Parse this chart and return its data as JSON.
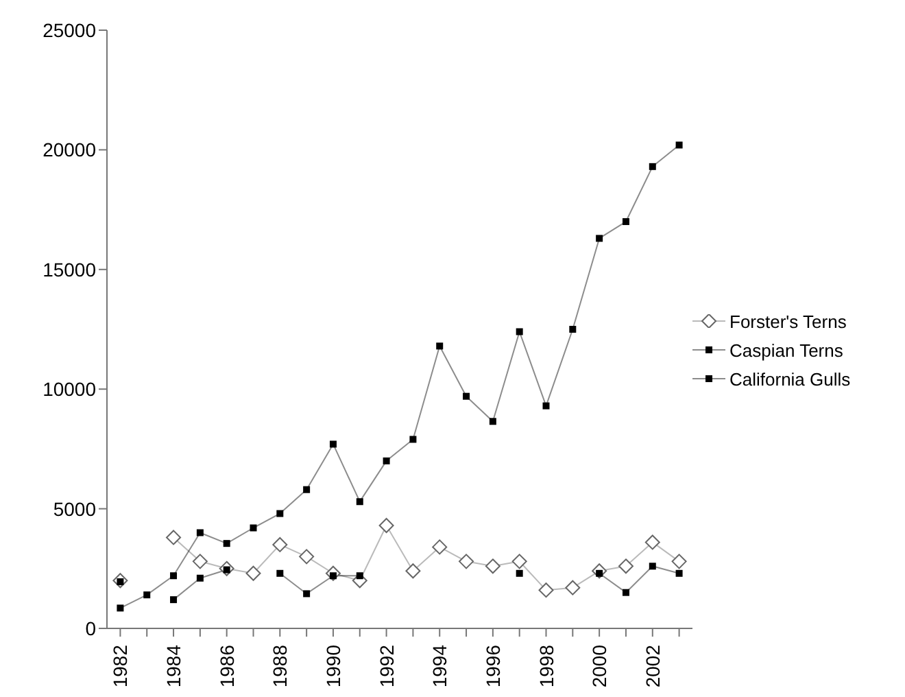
{
  "chart_data": {
    "type": "line",
    "categories": [
      "1982",
      null,
      "1984",
      null,
      "1986",
      null,
      "1988",
      null,
      "1990",
      null,
      "1992",
      null,
      "1994",
      null,
      "1996",
      null,
      "1998",
      null,
      "2000",
      null,
      "2002",
      null
    ],
    "series": [
      {
        "name": "Forster's Terns",
        "color": "#666666",
        "marker": "diamond",
        "values": [
          2000,
          null,
          3800,
          2800,
          2500,
          2300,
          3500,
          3000,
          2300,
          2000,
          4300,
          2400,
          3400,
          2800,
          2600,
          2800,
          1600,
          1700,
          2400,
          2600,
          3600,
          2800
        ]
      },
      {
        "name": "Caspian Terns",
        "color": "#000000",
        "marker": "square",
        "values": [
          1950,
          null,
          1200,
          2100,
          2450,
          null,
          2300,
          1450,
          2200,
          2200,
          null,
          null,
          null,
          null,
          null,
          2300,
          null,
          null,
          2300,
          1500,
          2600,
          2300
        ]
      },
      {
        "name": "California Gulls",
        "color": "#000000",
        "marker": "square",
        "values": [
          850,
          1400,
          2200,
          4000,
          3550,
          4200,
          4800,
          5800,
          7700,
          5300,
          7000,
          7900,
          11800,
          9700,
          8650,
          12400,
          9300,
          12500,
          16300,
          17000,
          19300,
          20200
        ]
      }
    ],
    "ylim": [
      0,
      25000
    ],
    "yticks": [
      0,
      5000,
      10000,
      15000,
      20000,
      25000
    ],
    "grid": false,
    "legend": "right"
  }
}
